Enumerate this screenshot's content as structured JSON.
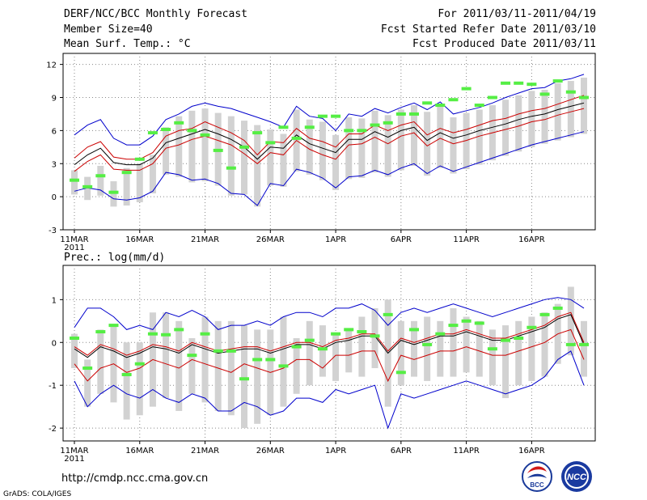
{
  "header": {
    "title": "DERF/NCC/BCC Monthly Forecast",
    "member_size": "Member Size=40",
    "variable": "Mean Surf. Temp.: °C",
    "period": "For 2011/03/11-2011/04/19",
    "refer_date": "Fcst Started Refer Date 2011/03/10",
    "produced_date": "Fcst Produced Date 2011/03/11"
  },
  "footer": {
    "url": "http://cmdp.ncc.cma.gov.cn",
    "grads": "GrADS: COLA/IGES",
    "logo_left": "BCC",
    "logo_right": "NCC"
  },
  "colors": {
    "blue": "#0000cc",
    "red": "#cc0000",
    "black": "#000000",
    "green": "#55ee44",
    "box": "#d2d2d2"
  },
  "chart_data": [
    {
      "type": "line",
      "title": "Mean Surf. Temp.: °C",
      "ylim": [
        -3,
        13
      ],
      "yticks": [
        -3,
        0,
        3,
        6,
        9,
        12
      ],
      "x_start": 1,
      "x_end": 40,
      "x_tick_positions": [
        1,
        6,
        11,
        16,
        21,
        26,
        31,
        36
      ],
      "x_tick_labels": [
        "11MAR",
        "16MAR",
        "21MAR",
        "26MAR",
        "1APR",
        "6APR",
        "11APR",
        "16APR"
      ],
      "x_year_label": "2011",
      "grid": true,
      "series": [
        {
          "name": "ensemble max",
          "color": "blue",
          "values": [
            5.6,
            6.5,
            7.0,
            5.3,
            4.7,
            4.7,
            5.5,
            7.0,
            7.5,
            8.2,
            8.5,
            8.2,
            8.0,
            7.6,
            7.2,
            6.8,
            6.3,
            8.2,
            7.3,
            7.1,
            6.0,
            7.5,
            7.3,
            8.0,
            7.6,
            8.1,
            8.5,
            7.9,
            8.6,
            7.5,
            7.8,
            8.1,
            8.5,
            9.0,
            9.4,
            9.8,
            9.9,
            10.5,
            10.7,
            11.1
          ]
        },
        {
          "name": "upper band",
          "color": "red",
          "values": [
            3.5,
            4.5,
            5.0,
            3.6,
            3.4,
            3.4,
            4.0,
            5.5,
            6.0,
            6.2,
            6.8,
            6.3,
            5.8,
            5.1,
            3.8,
            5.0,
            4.9,
            6.2,
            5.3,
            5.0,
            4.5,
            5.7,
            5.7,
            6.5,
            6.0,
            6.5,
            6.8,
            5.6,
            6.2,
            5.8,
            6.1,
            6.5,
            6.9,
            7.1,
            7.5,
            7.8,
            8.0,
            8.4,
            8.8,
            9.2
          ]
        },
        {
          "name": "ensemble mean",
          "color": "black",
          "values": [
            2.9,
            3.8,
            4.4,
            3.1,
            2.9,
            2.9,
            3.5,
            4.9,
            5.3,
            5.7,
            6.1,
            5.7,
            5.2,
            4.5,
            3.4,
            4.5,
            4.4,
            5.6,
            4.8,
            4.4,
            4.0,
            5.2,
            5.2,
            5.9,
            5.4,
            6.0,
            6.3,
            5.1,
            5.8,
            5.3,
            5.6,
            6.0,
            6.3,
            6.6,
            7.0,
            7.3,
            7.5,
            7.9,
            8.2,
            8.5
          ]
        },
        {
          "name": "lower band",
          "color": "red",
          "values": [
            2.3,
            3.2,
            3.8,
            2.5,
            2.4,
            2.4,
            3.0,
            4.4,
            4.7,
            5.2,
            5.5,
            5.1,
            4.7,
            3.9,
            3.0,
            4.0,
            3.8,
            5.1,
            4.3,
            3.8,
            3.4,
            4.7,
            4.8,
            5.4,
            4.8,
            5.5,
            5.8,
            4.6,
            5.3,
            4.8,
            5.1,
            5.5,
            5.8,
            6.1,
            6.4,
            6.8,
            7.0,
            7.4,
            7.7,
            8.0
          ]
        },
        {
          "name": "ensemble min",
          "color": "blue",
          "values": [
            0.5,
            0.8,
            0.6,
            -0.2,
            -0.3,
            -0.1,
            0.5,
            2.2,
            2.0,
            1.5,
            1.6,
            1.2,
            0.3,
            0.2,
            -0.8,
            1.2,
            1.0,
            2.5,
            2.2,
            1.7,
            0.8,
            1.8,
            1.9,
            2.4,
            2.0,
            2.6,
            3.0,
            2.1,
            2.8,
            2.3,
            2.7,
            3.1,
            3.5,
            3.9,
            4.3,
            4.7,
            5.0,
            5.3,
            5.6,
            5.9
          ]
        }
      ],
      "boxes": {
        "low": [
          0.2,
          -0.3,
          0.1,
          -0.9,
          -0.8,
          -0.5,
          0.3,
          2.0,
          1.8,
          1.3,
          1.4,
          1.0,
          0.1,
          0.2,
          -0.9,
          1.0,
          0.9,
          2.3,
          2.0,
          1.5,
          0.6,
          1.6,
          1.7,
          2.2,
          1.8,
          2.4,
          2.8,
          1.9,
          2.6,
          2.1,
          2.5,
          2.9,
          3.3,
          3.7,
          4.1,
          4.5,
          4.8,
          5.1,
          5.4,
          5.7
        ],
        "high": [
          2.4,
          1.8,
          2.8,
          1.4,
          2.6,
          3.0,
          3.8,
          6.3,
          7.3,
          7.8,
          8.0,
          7.6,
          7.3,
          6.9,
          6.5,
          6.1,
          5.7,
          7.9,
          7.0,
          6.8,
          5.6,
          7.2,
          7.1,
          7.8,
          7.4,
          7.9,
          8.3,
          7.7,
          8.4,
          7.2,
          7.6,
          7.9,
          8.3,
          8.8,
          9.2,
          9.6,
          9.7,
          10.3,
          10.5,
          10.8
        ]
      },
      "observed": [
        1.5,
        0.9,
        1.9,
        0.4,
        2.2,
        3.4,
        5.8,
        6.1,
        6.7,
        6.0,
        5.6,
        4.2,
        2.6,
        4.5,
        5.8,
        4.9,
        6.3,
        5.3,
        6.3,
        7.3,
        7.3,
        6.0,
        6.0,
        6.5,
        6.7,
        7.5,
        7.5,
        8.5,
        8.3,
        8.8,
        9.8,
        8.3,
        9.0,
        10.3,
        10.3,
        10.2,
        9.3,
        10.5,
        9.5,
        9.0
      ]
    },
    {
      "type": "line",
      "title": "Prec.: log(mm/d)",
      "ylim": [
        -2.3,
        1.8
      ],
      "yticks": [
        -2,
        -1,
        0,
        1
      ],
      "x_start": 1,
      "x_end": 40,
      "x_tick_positions": [
        1,
        6,
        11,
        16,
        21,
        26,
        31,
        36
      ],
      "x_tick_labels": [
        "11MAR",
        "16MAR",
        "21MAR",
        "26MAR",
        "1APR",
        "6APR",
        "11APR",
        "16APR"
      ],
      "x_year_label": "2011",
      "grid": true,
      "series": [
        {
          "name": "ensemble max",
          "color": "blue",
          "values": [
            0.35,
            0.8,
            0.8,
            0.6,
            0.3,
            0.4,
            0.3,
            0.7,
            0.6,
            0.75,
            0.6,
            0.3,
            0.4,
            0.4,
            0.5,
            0.4,
            0.6,
            0.7,
            0.7,
            0.6,
            0.8,
            0.8,
            0.9,
            0.75,
            0.4,
            0.7,
            0.8,
            0.7,
            0.8,
            0.9,
            0.8,
            0.7,
            0.6,
            0.7,
            0.8,
            0.9,
            1.0,
            1.05,
            1.0,
            0.8
          ]
        },
        {
          "name": "upper band",
          "color": "red",
          "values": [
            -0.1,
            -0.3,
            -0.05,
            -0.15,
            -0.3,
            -0.2,
            -0.05,
            -0.1,
            -0.2,
            0.0,
            -0.1,
            -0.2,
            -0.15,
            -0.1,
            -0.1,
            -0.2,
            -0.1,
            0.0,
            0.0,
            -0.1,
            0.05,
            0.1,
            0.2,
            0.2,
            -0.2,
            0.1,
            0.0,
            0.1,
            0.2,
            0.2,
            0.3,
            0.2,
            0.1,
            0.1,
            0.2,
            0.3,
            0.4,
            0.6,
            0.7,
            0.0
          ]
        },
        {
          "name": "ensemble mean",
          "color": "black",
          "values": [
            -0.15,
            -0.35,
            -0.1,
            -0.2,
            -0.35,
            -0.25,
            -0.1,
            -0.15,
            -0.25,
            -0.05,
            -0.15,
            -0.25,
            -0.2,
            -0.15,
            -0.15,
            -0.25,
            -0.15,
            -0.05,
            -0.05,
            -0.15,
            0.0,
            0.05,
            0.15,
            0.15,
            -0.25,
            0.05,
            -0.05,
            0.05,
            0.15,
            0.15,
            0.25,
            0.15,
            0.05,
            0.05,
            0.15,
            0.25,
            0.35,
            0.55,
            0.65,
            -0.05
          ]
        },
        {
          "name": "lower band",
          "color": "red",
          "values": [
            -0.5,
            -0.9,
            -0.6,
            -0.5,
            -0.7,
            -0.6,
            -0.4,
            -0.5,
            -0.6,
            -0.4,
            -0.5,
            -0.6,
            -0.7,
            -0.5,
            -0.6,
            -0.7,
            -0.6,
            -0.4,
            -0.4,
            -0.6,
            -0.3,
            -0.3,
            -0.2,
            -0.2,
            -0.9,
            -0.3,
            -0.4,
            -0.3,
            -0.2,
            -0.2,
            -0.1,
            -0.2,
            -0.3,
            -0.3,
            -0.2,
            -0.1,
            0.0,
            0.2,
            0.3,
            -0.4
          ]
        },
        {
          "name": "ensemble min",
          "color": "blue",
          "values": [
            -0.9,
            -1.5,
            -1.2,
            -1.0,
            -1.2,
            -1.3,
            -1.1,
            -1.3,
            -1.4,
            -1.2,
            -1.3,
            -1.6,
            -1.6,
            -1.4,
            -1.5,
            -1.7,
            -1.6,
            -1.3,
            -1.3,
            -1.4,
            -1.1,
            -1.2,
            -1.1,
            -1.0,
            -2.0,
            -1.2,
            -1.3,
            -1.2,
            -1.1,
            -1.0,
            -0.9,
            -1.0,
            -1.1,
            -1.2,
            -1.1,
            -1.0,
            -0.8,
            -0.4,
            -0.2,
            -1.0
          ]
        },
        {
          "name": "observed tail",
          "color": "black",
          "values": []
        }
      ],
      "boxes": {
        "low": [
          -0.6,
          -1.5,
          -1.2,
          -1.4,
          -1.8,
          -1.7,
          -1.5,
          -1.3,
          -1.6,
          -1.2,
          -1.4,
          -1.6,
          -1.7,
          -2.0,
          -1.9,
          -1.7,
          -1.5,
          -1.2,
          -1.0,
          -0.8,
          -0.9,
          -0.7,
          -0.8,
          -0.6,
          -1.5,
          -1.0,
          -0.8,
          -0.9,
          -0.8,
          -0.8,
          -0.7,
          -0.8,
          -1.0,
          -1.3,
          -1.0,
          -0.9,
          -0.8,
          -0.5,
          -0.3,
          -0.8
        ],
        "high": [
          0.2,
          -0.4,
          0.3,
          0.4,
          0.0,
          0.0,
          0.7,
          0.7,
          0.5,
          0.1,
          0.6,
          0.5,
          0.5,
          0.4,
          0.3,
          0.3,
          0.6,
          0.1,
          0.5,
          0.4,
          0.2,
          0.3,
          0.6,
          0.8,
          1.0,
          0.5,
          0.5,
          0.6,
          0.5,
          0.8,
          0.6,
          0.5,
          0.3,
          0.4,
          0.5,
          0.6,
          0.7,
          0.9,
          1.3,
          0.5
        ]
      },
      "observed": [
        0.1,
        -0.6,
        0.25,
        0.4,
        -0.75,
        -0.5,
        0.2,
        0.18,
        0.3,
        -0.3,
        0.2,
        -0.2,
        -0.2,
        -0.85,
        -0.4,
        -0.4,
        -0.55,
        -0.1,
        0.05,
        -0.15,
        0.2,
        0.3,
        0.25,
        0.15,
        0.65,
        -0.7,
        0.3,
        -0.05,
        0.2,
        0.4,
        0.5,
        0.45,
        -0.15,
        0.05,
        0.1,
        0.35,
        0.65,
        0.8,
        -0.05,
        -0.05
      ]
    }
  ]
}
